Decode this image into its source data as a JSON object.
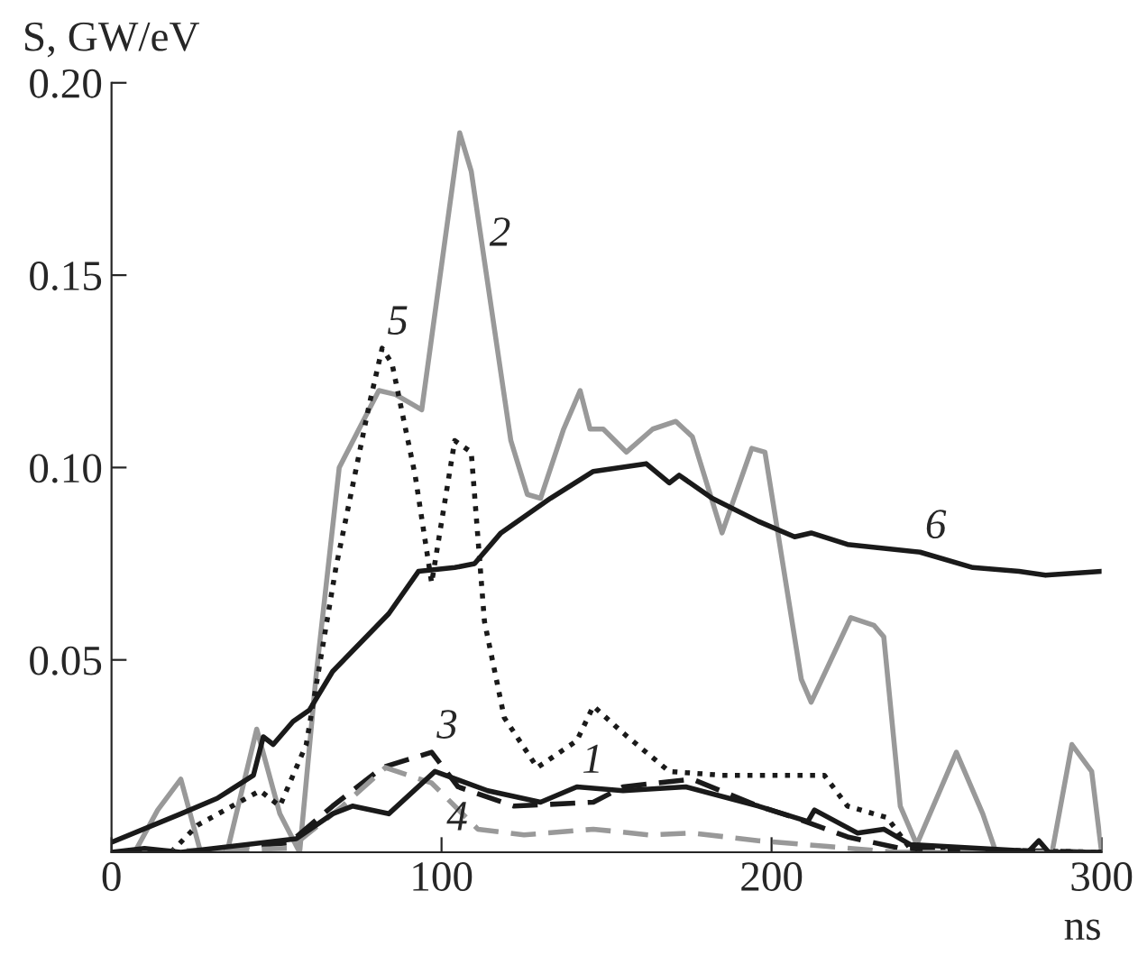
{
  "chart_data": {
    "type": "line",
    "xlabel": "ns",
    "ylabel": "S, GW/eV",
    "xlim": [
      0,
      300
    ],
    "ylim": [
      0,
      0.2
    ],
    "xticks": [
      0,
      100,
      200,
      300
    ],
    "yticks": [
      {
        "value": 0.05,
        "label": "0.05"
      },
      {
        "value": 0.1,
        "label": "0.10"
      },
      {
        "value": 0.15,
        "label": "0.15"
      },
      {
        "value": 0.2,
        "label": "0.20"
      }
    ],
    "grid": false,
    "legend": false,
    "marker": "none",
    "series": [
      {
        "color": "#999999",
        "line_style": "solid",
        "x": [
          7,
          14,
          21,
          27,
          35,
          44,
          51,
          57,
          62,
          69,
          81,
          86,
          94,
          105.5,
          109,
          121,
          126,
          130,
          137,
          142,
          145,
          149,
          156,
          164,
          171,
          176,
          185,
          194,
          198,
          209,
          212,
          224,
          231,
          234,
          239,
          244,
          256,
          264,
          268,
          285,
          291,
          297,
          300
        ],
        "values": [
          0,
          0.011,
          0.019,
          0,
          0,
          0.032,
          0.01,
          0,
          0.046,
          0.1,
          0.12,
          0.119,
          0.115,
          0.187,
          0.177,
          0.107,
          0.093,
          0.092,
          0.11,
          0.12,
          0.11,
          0.11,
          0.104,
          0.11,
          0.112,
          0.108,
          0.083,
          0.105,
          0.104,
          0.045,
          0.039,
          0.061,
          0.059,
          0.056,
          0.012,
          0.002,
          0.026,
          0.01,
          0,
          0,
          0.028,
          0.021,
          0
        ]
      },
      {
        "color": "#1a1a1a",
        "line_style": "solid",
        "x": [
          0,
          21,
          32,
          43,
          46,
          49,
          55,
          60,
          67,
          84,
          93,
          104,
          110,
          118,
          133,
          146,
          162,
          169,
          172,
          182,
          196,
          207,
          212,
          223,
          245,
          261,
          275,
          283,
          300
        ],
        "values": [
          0.0026,
          0.01,
          0.014,
          0.02,
          0.03,
          0.028,
          0.034,
          0.037,
          0.047,
          0.062,
          0.073,
          0.074,
          0.075,
          0.083,
          0.092,
          0.099,
          0.101,
          0.096,
          0.098,
          0.092,
          0.086,
          0.082,
          0.083,
          0.08,
          0.078,
          0.074,
          0.073,
          0.072,
          0.073
        ]
      },
      {
        "color": "#1a1a1a",
        "line_style": "dotted",
        "x": [
          18,
          26,
          45,
          51,
          59,
          68,
          78,
          82,
          85,
          92,
          97,
          104,
          109,
          113,
          119,
          129,
          141,
          146,
          155,
          169,
          185,
          216,
          223,
          235,
          242,
          300
        ],
        "values": [
          0,
          0.007,
          0.016,
          0.012,
          0.028,
          0.074,
          0.116,
          0.131,
          0.127,
          0.098,
          0.07,
          0.107,
          0.104,
          0.06,
          0.035,
          0.022,
          0.029,
          0.038,
          0.031,
          0.021,
          0.02,
          0.02,
          0.012,
          0.009,
          0.001,
          0
        ]
      },
      {
        "color": "#1a1a1a",
        "line_style": "dashed",
        "x": [
          0,
          21,
          54,
          67,
          82,
          97,
          105,
          122,
          146,
          155,
          176,
          196,
          207,
          223,
          239,
          300
        ],
        "values": [
          0,
          0,
          0.0025,
          0.012,
          0.022,
          0.026,
          0.017,
          0.012,
          0.013,
          0.017,
          0.019,
          0.012,
          0.009,
          0.004,
          0.001,
          0
        ]
      },
      {
        "color": "#999999",
        "line_style": "dashed",
        "x": [
          0,
          54,
          70,
          83,
          97,
          111,
          125,
          146,
          163,
          176,
          196,
          217,
          238,
          300
        ],
        "values": [
          0,
          0.001,
          0.012,
          0.022,
          0.018,
          0.006,
          0.0045,
          0.006,
          0.0045,
          0.005,
          0.003,
          0.0015,
          0,
          0
        ]
      },
      {
        "color": "#1a1a1a",
        "line_style": "solid",
        "x": [
          0,
          10,
          21,
          56,
          67,
          73,
          84,
          98,
          114,
          130,
          141,
          155,
          174,
          196,
          211,
          213,
          226,
          234,
          242,
          278,
          281,
          284,
          300
        ],
        "values": [
          0,
          0.001,
          0,
          0.0035,
          0.01,
          0.012,
          0.01,
          0.021,
          0.016,
          0.013,
          0.017,
          0.016,
          0.017,
          0.012,
          0.008,
          0.011,
          0.005,
          0.006,
          0.002,
          0.0003,
          0.003,
          0,
          0
        ]
      }
    ],
    "annotations": [
      {
        "text": "1",
        "x": 141,
        "y": 0.017
      },
      {
        "text": "2",
        "x": 113,
        "y": 0.154
      },
      {
        "text": "3",
        "x": 97,
        "y": 0.026
      },
      {
        "text": "4",
        "x": 100,
        "y": 0.0154
      },
      {
        "text": "5",
        "x": 82,
        "y": 0.131
      },
      {
        "text": "6",
        "x": 245,
        "y": 0.078
      }
    ]
  }
}
